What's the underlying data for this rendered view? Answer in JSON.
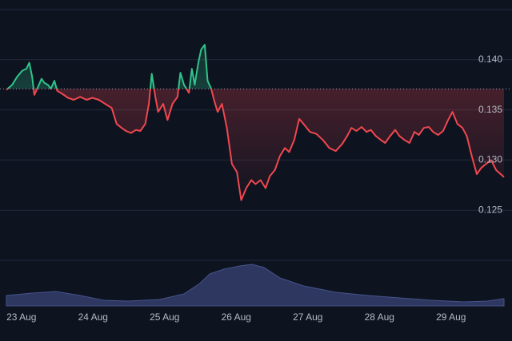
{
  "chart_data": {
    "type": "line",
    "xticks": [
      {
        "value": 0,
        "label": "23 Aug"
      },
      {
        "value": 1,
        "label": "24 Aug"
      },
      {
        "value": 2,
        "label": "25 Aug"
      },
      {
        "value": 3,
        "label": "26 Aug"
      },
      {
        "value": 4,
        "label": "27 Aug"
      },
      {
        "value": 5,
        "label": "28 Aug"
      },
      {
        "value": 6,
        "label": "29 Aug"
      }
    ],
    "xlim": [
      -0.21,
      6.74
    ],
    "ylim": [
      0.12,
      0.145
    ],
    "yticks": [
      0.125,
      {
        "value": 0.13,
        "label": "0.130"
      },
      0.135,
      {
        "value": 0.14,
        "label": "0.140"
      }
    ],
    "grid": true,
    "baseline": 0.1371,
    "up_color": "#2fc48a",
    "down_color": "#f0474f",
    "series": [
      {
        "x": [
          -0.21,
          -0.13,
          -0.06,
          0.01,
          0.07,
          0.11,
          0.15,
          0.18,
          0.22,
          0.28,
          0.32,
          0.37,
          0.41,
          0.46,
          0.5,
          0.57,
          0.65,
          0.73,
          0.82,
          0.91,
          0.99,
          1.08,
          1.17,
          1.26,
          1.33,
          1.4,
          1.46,
          1.53,
          1.6,
          1.66,
          1.73,
          1.78,
          1.82,
          1.87,
          1.91,
          1.98,
          2.04,
          2.11,
          2.18,
          2.22,
          2.27,
          2.34,
          2.38,
          2.42,
          2.47,
          2.51,
          2.56,
          2.6,
          2.65,
          2.69,
          2.74,
          2.8,
          2.87,
          2.94,
          3.01,
          3.07,
          3.14,
          3.21,
          3.27,
          3.34,
          3.41,
          3.47,
          3.54,
          3.61,
          3.68,
          3.74,
          3.81,
          3.88,
          3.94,
          4.03,
          4.12,
          4.21,
          4.3,
          4.39,
          4.48,
          4.55,
          4.61,
          4.68,
          4.75,
          4.82,
          4.88,
          4.95,
          5.02,
          5.08,
          5.15,
          5.22,
          5.28,
          5.35,
          5.42,
          5.49,
          5.55,
          5.62,
          5.69,
          5.75,
          5.82,
          5.89,
          5.96,
          6.02,
          6.09,
          6.16,
          6.22,
          6.29,
          6.36,
          6.42,
          6.49,
          6.56,
          6.63,
          6.74
        ],
        "values": [
          0.137,
          0.1375,
          0.1383,
          0.1389,
          0.1391,
          0.1397,
          0.1383,
          0.1365,
          0.1371,
          0.1381,
          0.1377,
          0.1375,
          0.1371,
          0.1379,
          0.1369,
          0.1366,
          0.1362,
          0.136,
          0.1363,
          0.136,
          0.1362,
          0.136,
          0.1356,
          0.1352,
          0.1336,
          0.1332,
          0.1329,
          0.1327,
          0.133,
          0.1329,
          0.1336,
          0.1356,
          0.1386,
          0.1363,
          0.1348,
          0.1356,
          0.134,
          0.1356,
          0.1363,
          0.1387,
          0.1375,
          0.1367,
          0.1391,
          0.1375,
          0.1397,
          0.141,
          0.1415,
          0.1379,
          0.1371,
          0.136,
          0.1348,
          0.1356,
          0.1332,
          0.1296,
          0.1288,
          0.126,
          0.1272,
          0.128,
          0.1276,
          0.128,
          0.1272,
          0.1284,
          0.129,
          0.1304,
          0.1312,
          0.1308,
          0.132,
          0.1341,
          0.1336,
          0.1328,
          0.1326,
          0.132,
          0.1312,
          0.1309,
          0.1316,
          0.1324,
          0.1332,
          0.1329,
          0.1333,
          0.1328,
          0.133,
          0.1324,
          0.132,
          0.1317,
          0.1324,
          0.133,
          0.1324,
          0.132,
          0.1317,
          0.1328,
          0.1325,
          0.1332,
          0.1333,
          0.1328,
          0.1325,
          0.1329,
          0.134,
          0.1348,
          0.1336,
          0.1332,
          0.1324,
          0.1304,
          0.1286,
          0.1292,
          0.1296,
          0.13,
          0.129,
          0.1283
        ]
      }
    ],
    "volume": {
      "color": "#2e3760",
      "ylim": [
        0,
        60
      ],
      "x": [
        -0.21,
        0.15,
        0.48,
        0.82,
        1.15,
        1.49,
        1.93,
        2.27,
        2.49,
        2.63,
        2.83,
        3.05,
        3.22,
        3.39,
        3.61,
        3.94,
        4.39,
        4.84,
        5.28,
        5.73,
        6.18,
        6.51,
        6.74
      ],
      "values": [
        13,
        16,
        18,
        13,
        7,
        6,
        8,
        15,
        28,
        40,
        46,
        50,
        52,
        48,
        35,
        25,
        17,
        13,
        10,
        7,
        5,
        6,
        9
      ]
    }
  }
}
